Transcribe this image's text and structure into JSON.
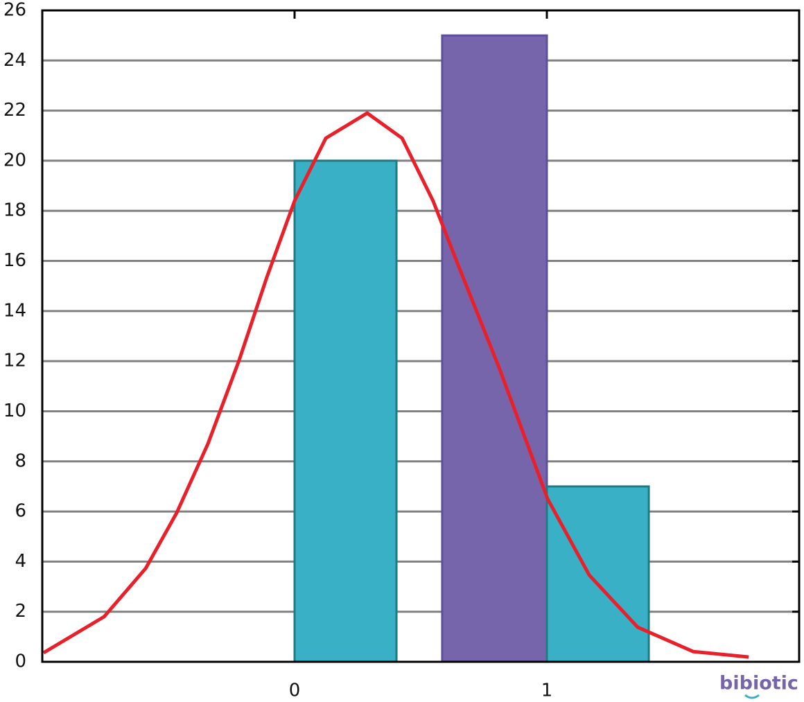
{
  "chart_data": {
    "type": "bar",
    "bars": [
      {
        "x0": 0,
        "x1": 0.404,
        "value": 20,
        "color": "#3ab0c6",
        "edge": "#1f7a85"
      },
      {
        "x0": 0.585,
        "x1": 1.0,
        "value": 25,
        "color": "#7765ab",
        "edge": "#5b4f9e"
      },
      {
        "x0": 1.0,
        "x1": 1.404,
        "value": 7,
        "color": "#3ab0c6",
        "edge": "#1f7a85"
      }
    ],
    "curve": {
      "color": "#e8202a",
      "x": [
        -0.995,
        -0.755,
        -0.59,
        -0.467,
        -0.343,
        -0.22,
        -0.11,
        0,
        0.124,
        0.288,
        0.426,
        0.549,
        0.646,
        0.81,
        1.003,
        1.168,
        1.36,
        1.58,
        1.8
      ],
      "values": [
        0.36,
        1.8,
        3.73,
        5.95,
        8.71,
        12.03,
        15.35,
        18.4,
        20.9,
        21.9,
        20.9,
        18.4,
        15.9,
        11.76,
        6.5,
        3.46,
        1.38,
        0.41,
        0.19
      ]
    },
    "xlim": [
      -1,
      2
    ],
    "xticks": [
      0,
      1
    ],
    "ylim": [
      0,
      26
    ],
    "yticks": [
      0,
      2,
      4,
      6,
      8,
      10,
      12,
      14,
      16,
      18,
      20,
      22,
      24,
      26
    ],
    "grid": true,
    "grid_color": "#808080",
    "watermark": "bibiotic"
  }
}
